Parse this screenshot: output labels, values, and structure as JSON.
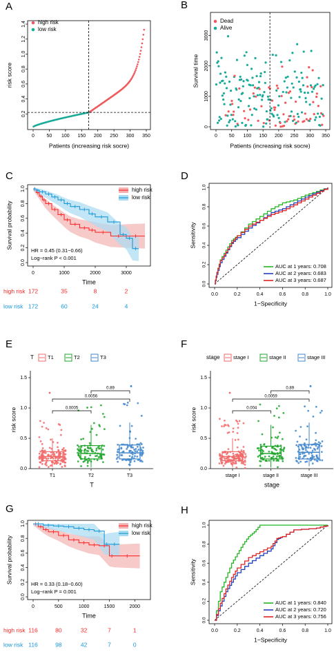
{
  "colors": {
    "high": "#f0585b",
    "low": "#1aaa98",
    "hiKM": "#ff2a2a",
    "loKM": "#1a98d8",
    "auc1": "#22b522",
    "auc2": "#1f3fbf",
    "auc3": "#e12020",
    "stageRed": "#f16a6a",
    "stageGreen": "#1fa52a",
    "stageBlue": "#3f86cc"
  },
  "panels": {
    "A": {
      "letter": "A",
      "xlabel": "Patients (increasing risk socre)",
      "ylabel": "risk score",
      "legend": [
        "high risk",
        "low risk"
      ],
      "xticks": [
        "0",
        "50",
        "100",
        "150",
        "200",
        "250",
        "300",
        "350"
      ],
      "yticks": [
        "0.2",
        "0.4",
        "0.6",
        "0.8",
        "1.0",
        "1.2",
        "1.4"
      ]
    },
    "B": {
      "letter": "B",
      "xlabel": "Patients (increasing risk socre)",
      "ylabel": "Survival time",
      "legend": [
        "Dead",
        "Alive"
      ],
      "xticks": [
        "0",
        "50",
        "100",
        "150",
        "200",
        "250",
        "300",
        "350"
      ],
      "yticks": [
        "0",
        "1000",
        "2000",
        "3000"
      ]
    },
    "C": {
      "letter": "C",
      "xlabel": "Time",
      "ylabel": "Survival probability",
      "legend": [
        "high risk",
        "low risk"
      ],
      "xticks": [
        "0",
        "1000",
        "2000",
        "3000"
      ],
      "yticks": [
        "0.0",
        "0.2",
        "0.4",
        "0.6",
        "0.8",
        "1.0"
      ],
      "hr": "HR = 0.45 (0.31−0.66)",
      "logrank": "Log−rank P < 0.001",
      "risk_table": [
        {
          "label": "high risk",
          "n": "172",
          "values": [
            "172",
            "35",
            "8",
            "2"
          ]
        },
        {
          "label": "low risk",
          "n": "172",
          "values": [
            "172",
            "60",
            "24",
            "4"
          ]
        }
      ]
    },
    "D": {
      "letter": "D",
      "xlabel": "1−Specificity",
      "ylabel": "Sensitivity",
      "xticks": [
        "0.0",
        "0.2",
        "0.4",
        "0.6",
        "0.8",
        "1.0"
      ],
      "yticks": [
        "0.0",
        "0.2",
        "0.4",
        "0.6",
        "0.8",
        "1.0"
      ],
      "auc": [
        "AUC at 1 years: 0.708",
        "AUC at 2 years: 0.683",
        "AUC at 3 years: 0.687"
      ]
    },
    "E": {
      "letter": "E",
      "legend_title": "T",
      "legend": [
        "T1",
        "T2",
        "T3"
      ],
      "xlabel": "T",
      "ylabel": "risk score",
      "xticks": [
        "T1",
        "T2",
        "T3"
      ],
      "yticks": [
        "0.0",
        "0.5",
        "1.0",
        "1.5"
      ],
      "pvals": [
        "0.0005",
        "0.0056",
        "0.89"
      ]
    },
    "F": {
      "letter": "F",
      "legend_title": "stage",
      "legend": [
        "stage I",
        "stage II",
        "stage III"
      ],
      "xlabel": "stage",
      "ylabel": "risk score",
      "xticks": [
        "stage I",
        "stage II",
        "stage III"
      ],
      "yticks": [
        "0.0",
        "0.5",
        "1.0",
        "1.5"
      ],
      "pvals": [
        "0.004",
        "0.0059",
        "0.89"
      ]
    },
    "G": {
      "letter": "G",
      "xlabel": "Time",
      "ylabel": "Survival probability",
      "legend": [
        "high risk",
        "low risk"
      ],
      "xticks": [
        "0",
        "500",
        "1000",
        "1500",
        "2000"
      ],
      "yticks": [
        "0.0",
        "0.2",
        "0.4",
        "0.6",
        "0.8",
        "1.0"
      ],
      "hr": "HR = 0.33 (0.18−0.60)",
      "logrank": "Log−rank P = 0.001",
      "risk_table": [
        {
          "label": "high risk",
          "n": "116",
          "values": [
            "116",
            "80",
            "32",
            "7",
            "1"
          ]
        },
        {
          "label": "low risk",
          "n": "116",
          "values": [
            "116",
            "98",
            "42",
            "7",
            "0"
          ]
        }
      ]
    },
    "H": {
      "letter": "H",
      "xlabel": "1−Specificity",
      "ylabel": "Sensitivity",
      "xticks": [
        "0.0",
        "0.2",
        "0.4",
        "0.6",
        "0.8",
        "1.0"
      ],
      "yticks": [
        "0.0",
        "0.2",
        "0.4",
        "0.6",
        "0.8",
        "1.0"
      ],
      "auc": [
        "AUC at 1 years: 0.840",
        "AUC at 2 years: 0.720",
        "AUC at 3 years: 0.756"
      ]
    }
  },
  "chart_data": [
    {
      "panel": "A",
      "type": "scatter",
      "xlabel": "Patients (increasing risk socre)",
      "ylabel": "risk score",
      "xlim": [
        0,
        350
      ],
      "ylim": [
        0,
        1.4
      ],
      "cutoff_x": 172,
      "cutoff_y": 0.22,
      "series": [
        {
          "name": "low risk",
          "x_range": [
            1,
            172
          ],
          "y_range": [
            0.03,
            0.22
          ]
        },
        {
          "name": "high risk",
          "x_range": [
            173,
            344
          ],
          "y_range": [
            0.22,
            1.36
          ]
        }
      ]
    },
    {
      "panel": "B",
      "type": "scatter",
      "xlabel": "Patients (increasing risk socre)",
      "ylabel": "Survival time",
      "xlim": [
        0,
        350
      ],
      "ylim": [
        0,
        3600
      ],
      "cutoff_x": 172,
      "series": [
        "Dead",
        "Alive"
      ]
    },
    {
      "panel": "C",
      "type": "line",
      "xlabel": "Time",
      "ylabel": "Survival probability",
      "xlim": [
        0,
        3600
      ],
      "ylim": [
        0,
        1
      ],
      "series": [
        {
          "name": "high risk",
          "x": [
            0,
            100,
            200,
            300,
            400,
            600,
            800,
            1000,
            1200,
            1500,
            1800,
            2000,
            2500,
            3000,
            3600
          ],
          "y": [
            1.0,
            0.95,
            0.9,
            0.85,
            0.8,
            0.72,
            0.65,
            0.58,
            0.52,
            0.47,
            0.44,
            0.41,
            0.36,
            0.36,
            0.36
          ]
        },
        {
          "name": "low risk",
          "x": [
            0,
            100,
            200,
            400,
            600,
            800,
            1000,
            1200,
            1500,
            1800,
            2000,
            2400,
            2800,
            3000,
            3200,
            3400
          ],
          "y": [
            1.0,
            0.98,
            0.96,
            0.93,
            0.89,
            0.85,
            0.8,
            0.76,
            0.72,
            0.66,
            0.62,
            0.55,
            0.38,
            0.33,
            0.19,
            0.19
          ]
        }
      ]
    },
    {
      "panel": "D",
      "type": "line",
      "xlabel": "1−Specificity",
      "ylabel": "Sensitivity",
      "xlim": [
        0,
        1
      ],
      "ylim": [
        0,
        1
      ],
      "series": [
        {
          "name": "AUC at 1 years: 0.708",
          "x": [
            0,
            0.02,
            0.05,
            0.1,
            0.15,
            0.2,
            0.3,
            0.4,
            0.5,
            0.6,
            0.7,
            0.8,
            0.9,
            1.0
          ],
          "y": [
            0,
            0.12,
            0.25,
            0.35,
            0.45,
            0.5,
            0.62,
            0.7,
            0.78,
            0.84,
            0.87,
            0.92,
            0.96,
            1.0
          ]
        },
        {
          "name": "AUC at 2 years: 0.683",
          "x": [
            0,
            0.02,
            0.05,
            0.1,
            0.15,
            0.2,
            0.3,
            0.4,
            0.5,
            0.6,
            0.7,
            0.8,
            0.9,
            1.0
          ],
          "y": [
            0,
            0.1,
            0.22,
            0.32,
            0.42,
            0.48,
            0.58,
            0.66,
            0.74,
            0.78,
            0.84,
            0.9,
            0.95,
            1.0
          ]
        },
        {
          "name": "AUC at 3 years: 0.687",
          "x": [
            0,
            0.02,
            0.05,
            0.1,
            0.15,
            0.2,
            0.3,
            0.4,
            0.5,
            0.6,
            0.7,
            0.8,
            0.9,
            1.0
          ],
          "y": [
            0,
            0.12,
            0.24,
            0.33,
            0.43,
            0.5,
            0.6,
            0.66,
            0.72,
            0.76,
            0.82,
            0.88,
            0.94,
            1.0
          ]
        }
      ]
    },
    {
      "panel": "E",
      "type": "box",
      "categories": [
        "T1",
        "T2",
        "T3"
      ],
      "ylim": [
        0,
        1.5
      ],
      "stats": [
        {
          "min": 0.02,
          "q1": 0.13,
          "median": 0.2,
          "q3": 0.28,
          "max": 0.5
        },
        {
          "min": 0.02,
          "q1": 0.16,
          "median": 0.25,
          "q3": 0.38,
          "max": 0.72
        },
        {
          "min": 0.04,
          "q1": 0.16,
          "median": 0.26,
          "q3": 0.39,
          "max": 0.76
        }
      ]
    },
    {
      "panel": "F",
      "type": "box",
      "categories": [
        "stage I",
        "stage II",
        "stage III"
      ],
      "ylim": [
        0,
        1.5
      ],
      "stats": [
        {
          "min": 0.02,
          "q1": 0.13,
          "median": 0.2,
          "q3": 0.28,
          "max": 0.5
        },
        {
          "min": 0.02,
          "q1": 0.16,
          "median": 0.25,
          "q3": 0.37,
          "max": 0.72
        },
        {
          "min": 0.04,
          "q1": 0.16,
          "median": 0.27,
          "q3": 0.4,
          "max": 0.76
        }
      ]
    },
    {
      "panel": "G",
      "type": "line",
      "xlabel": "Time",
      "ylabel": "Survival probability",
      "xlim": [
        0,
        2200
      ],
      "ylim": [
        0,
        1
      ],
      "series": [
        {
          "name": "high risk",
          "x": [
            0,
            100,
            200,
            300,
            500,
            700,
            900,
            1100,
            1300,
            1500,
            1600,
            2100
          ],
          "y": [
            1.0,
            0.96,
            0.92,
            0.89,
            0.84,
            0.78,
            0.74,
            0.71,
            0.7,
            0.56,
            0.56,
            0.56
          ]
        },
        {
          "name": "low risk",
          "x": [
            0,
            200,
            400,
            600,
            800,
            1000,
            1200,
            1400,
            1500,
            1700
          ],
          "y": [
            1.0,
            0.98,
            0.97,
            0.96,
            0.94,
            0.92,
            0.9,
            0.72,
            0.72,
            0.72
          ]
        }
      ]
    },
    {
      "panel": "H",
      "type": "line",
      "xlabel": "1−Specificity",
      "ylabel": "Sensitivity",
      "xlim": [
        0,
        1
      ],
      "ylim": [
        0,
        1
      ],
      "series": [
        {
          "name": "AUC at 1 years: 0.840",
          "x": [
            0,
            0.05,
            0.1,
            0.15,
            0.2,
            0.25,
            0.3,
            0.35,
            0.4,
            0.5,
            0.6,
            0.8,
            1.0
          ],
          "y": [
            0,
            0.3,
            0.45,
            0.6,
            0.7,
            0.8,
            0.88,
            0.93,
            1.0,
            1.0,
            1.0,
            1.0,
            1.0
          ]
        },
        {
          "name": "AUC at 2 years: 0.720",
          "x": [
            0,
            0.05,
            0.1,
            0.15,
            0.2,
            0.3,
            0.4,
            0.5,
            0.55,
            0.6,
            0.7,
            0.9,
            1.0
          ],
          "y": [
            0,
            0.15,
            0.3,
            0.4,
            0.5,
            0.6,
            0.68,
            0.75,
            0.85,
            0.88,
            0.95,
            0.97,
            1.0
          ]
        },
        {
          "name": "AUC at 3 years: 0.756",
          "x": [
            0,
            0.05,
            0.1,
            0.15,
            0.2,
            0.3,
            0.4,
            0.5,
            0.55,
            0.6,
            0.7,
            0.9,
            1.0
          ],
          "y": [
            0,
            0.18,
            0.33,
            0.45,
            0.55,
            0.66,
            0.72,
            0.78,
            0.86,
            0.88,
            0.95,
            0.97,
            1.0
          ]
        }
      ]
    }
  ]
}
